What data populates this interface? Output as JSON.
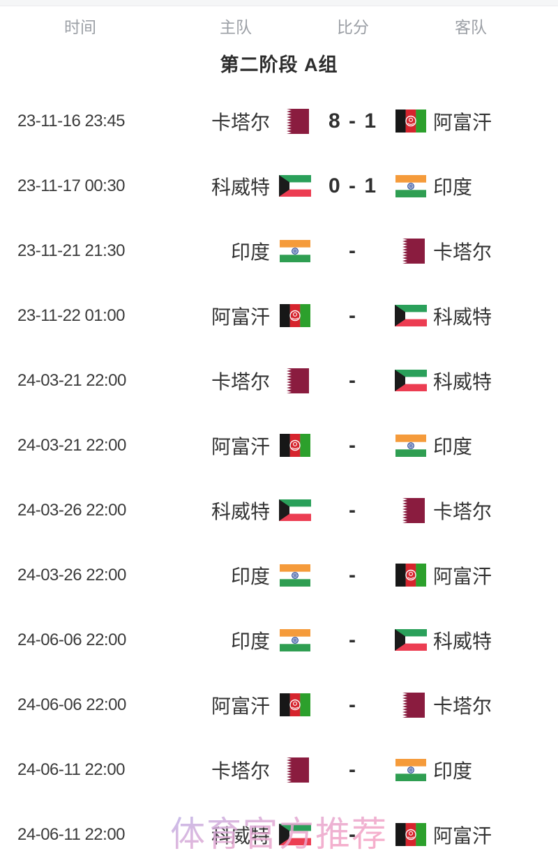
{
  "table": {
    "columns": [
      {
        "key": "time",
        "label": "时间"
      },
      {
        "key": "home",
        "label": "主队"
      },
      {
        "key": "score",
        "label": "比分"
      },
      {
        "key": "away",
        "label": "客队"
      }
    ],
    "group_title": "第二阶段 A组",
    "matches": [
      {
        "time": "23-11-16 23:45",
        "home": "卡塔尔",
        "home_flag": "qatar",
        "score": "8 - 1",
        "away": "阿富汗",
        "away_flag": "afghanistan"
      },
      {
        "time": "23-11-17 00:30",
        "home": "科威特",
        "home_flag": "kuwait",
        "score": "0 - 1",
        "away": "印度",
        "away_flag": "india"
      },
      {
        "time": "23-11-21 21:30",
        "home": "印度",
        "home_flag": "india",
        "score": "-",
        "away": "卡塔尔",
        "away_flag": "qatar"
      },
      {
        "time": "23-11-22 01:00",
        "home": "阿富汗",
        "home_flag": "afghanistan",
        "score": "-",
        "away": "科威特",
        "away_flag": "kuwait"
      },
      {
        "time": "24-03-21 22:00",
        "home": "卡塔尔",
        "home_flag": "qatar",
        "score": "-",
        "away": "科威特",
        "away_flag": "kuwait"
      },
      {
        "time": "24-03-21 22:00",
        "home": "阿富汗",
        "home_flag": "afghanistan",
        "score": "-",
        "away": "印度",
        "away_flag": "india"
      },
      {
        "time": "24-03-26 22:00",
        "home": "科威特",
        "home_flag": "kuwait",
        "score": "-",
        "away": "卡塔尔",
        "away_flag": "qatar"
      },
      {
        "time": "24-03-26 22:00",
        "home": "印度",
        "home_flag": "india",
        "score": "-",
        "away": "阿富汗",
        "away_flag": "afghanistan"
      },
      {
        "time": "24-06-06 22:00",
        "home": "印度",
        "home_flag": "india",
        "score": "-",
        "away": "科威特",
        "away_flag": "kuwait"
      },
      {
        "time": "24-06-06 22:00",
        "home": "阿富汗",
        "home_flag": "afghanistan",
        "score": "-",
        "away": "卡塔尔",
        "away_flag": "qatar"
      },
      {
        "time": "24-06-11 22:00",
        "home": "卡塔尔",
        "home_flag": "qatar",
        "score": "-",
        "away": "印度",
        "away_flag": "india"
      },
      {
        "time": "24-06-11 22:00",
        "home": "科威特",
        "home_flag": "kuwait",
        "score": "-",
        "away": "阿富汗",
        "away_flag": "afghanistan"
      }
    ]
  },
  "watermark": "体育官方推荐",
  "colors": {
    "header_text": "#9b9fa5",
    "body_text": "#333333",
    "watermark_pink": "#f4a2c4",
    "watermark_lavender": "#bcb2e8"
  },
  "flag_colors": {
    "qatar": {
      "maroon": "#8a1c3f",
      "white": "#ffffff"
    },
    "afghanistan": {
      "black": "#171717",
      "red": "#d6242d",
      "green": "#2ca02c",
      "emblem": "#ffffff"
    },
    "kuwait": {
      "green": "#2aa05a",
      "white": "#ffffff",
      "red": "#ec3d52",
      "black": "#1b1b1b"
    },
    "india": {
      "saffron": "#f59b3b",
      "white": "#ffffff",
      "green": "#2f9e52",
      "navy": "#1d3f94"
    }
  }
}
